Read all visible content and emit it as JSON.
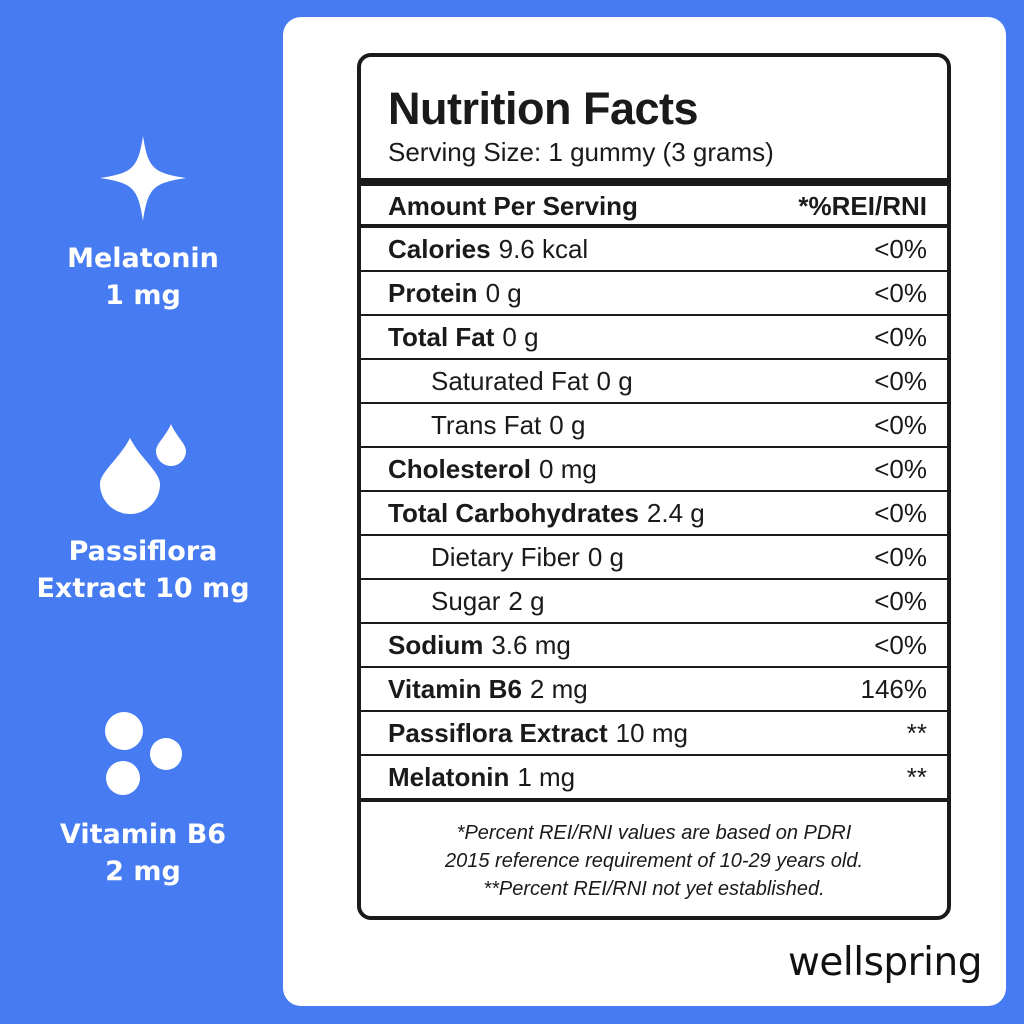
{
  "sidebar": {
    "items": [
      {
        "lines": [
          "Melatonin",
          "1 mg"
        ]
      },
      {
        "lines": [
          "Passiflora",
          "Extract 10 mg"
        ]
      },
      {
        "lines": [
          "Vitamin B6",
          "2 mg"
        ]
      }
    ]
  },
  "label": {
    "title": "Nutrition Facts",
    "serving": "Serving Size: 1 gummy (3 grams)",
    "header": {
      "left": "Amount Per Serving",
      "right": "*%REI/RNI"
    },
    "rows": [
      {
        "name": "Calories",
        "amount": "9.6 kcal",
        "percent": "<0%",
        "indent": false
      },
      {
        "name": "Protein",
        "amount": "0 g",
        "percent": "<0%",
        "indent": false
      },
      {
        "name": "Total Fat",
        "amount": "0 g",
        "percent": "<0%",
        "indent": false
      },
      {
        "name": "Saturated Fat",
        "amount": "0 g",
        "percent": "<0%",
        "indent": true
      },
      {
        "name": "Trans Fat",
        "amount": "0 g",
        "percent": "<0%",
        "indent": true
      },
      {
        "name": "Cholesterol",
        "amount": "0 mg",
        "percent": "<0%",
        "indent": false
      },
      {
        "name": "Total Carbohydrates",
        "amount": "2.4 g",
        "percent": "<0%",
        "indent": false
      },
      {
        "name": "Dietary Fiber",
        "amount": "0 g",
        "percent": "<0%",
        "indent": true
      },
      {
        "name": "Sugar",
        "amount": "2 g",
        "percent": "<0%",
        "indent": true
      },
      {
        "name": "Sodium",
        "amount": "3.6 mg",
        "percent": "<0%",
        "indent": false
      },
      {
        "name": "Vitamin B6",
        "amount": "2 mg",
        "percent": "146%",
        "indent": false
      },
      {
        "name": "Passiflora Extract",
        "amount": "10 mg",
        "percent": "**",
        "indent": false
      },
      {
        "name": "Melatonin",
        "amount": "1 mg",
        "percent": "**",
        "indent": false
      }
    ],
    "footnotes": [
      "*Percent REI/RNI values are based on PDRI",
      "2015 reference requirement of 10-29 years old.",
      "**Percent REI/RNI not yet established."
    ]
  },
  "brand": "wellspring"
}
